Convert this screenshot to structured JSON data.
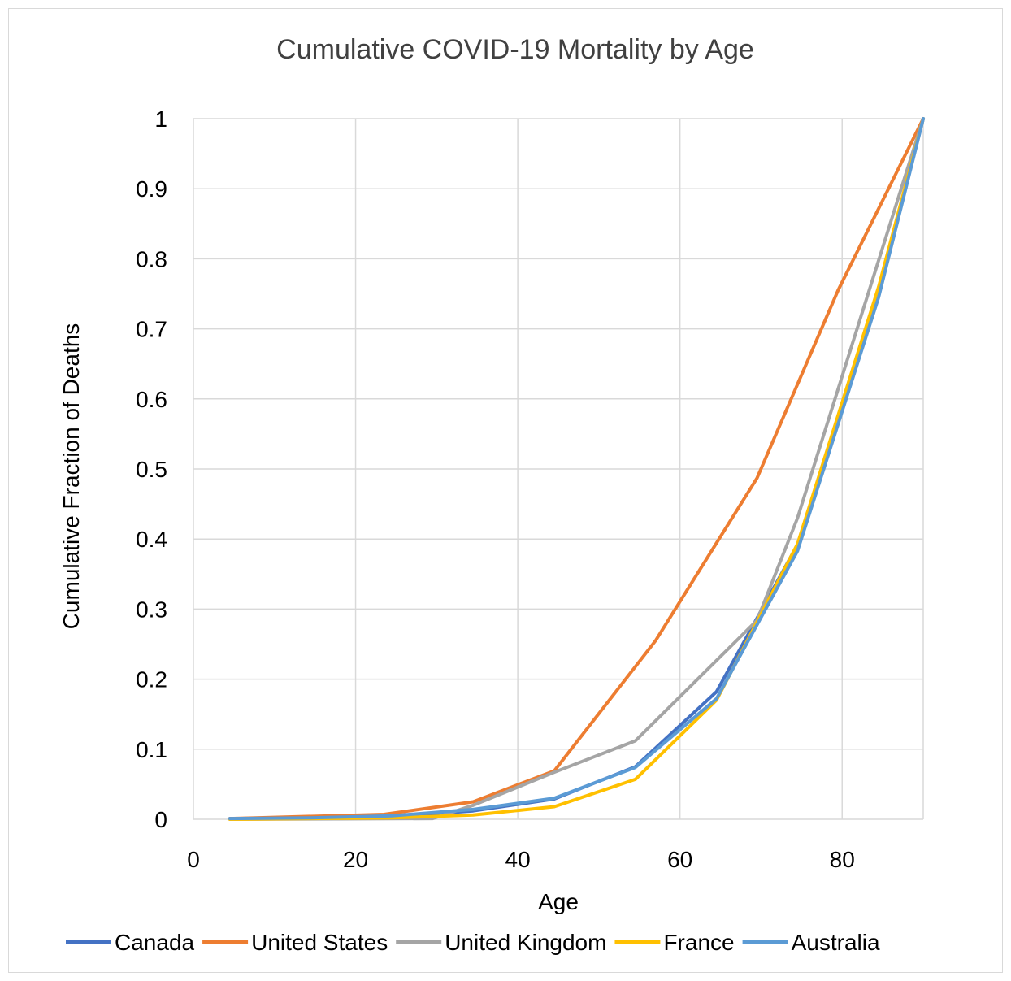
{
  "chart_data": {
    "type": "line",
    "title": "Cumulative COVID-19 Mortality by Age",
    "xlabel": "Age",
    "ylabel": "Cumulative Fraction of Deaths",
    "xlim": [
      0,
      90
    ],
    "ylim": [
      0,
      1
    ],
    "x_ticks": [
      0,
      20,
      40,
      60,
      80
    ],
    "y_ticks": [
      0,
      0.1,
      0.2,
      0.3,
      0.4,
      0.5,
      0.6,
      0.7,
      0.8,
      0.9,
      1
    ],
    "x_tick_labels": [
      "0",
      "20",
      "40",
      "60",
      "80"
    ],
    "y_tick_labels": [
      "0",
      "0.1",
      "0.2",
      "0.3",
      "0.4",
      "0.5",
      "0.6",
      "0.7",
      "0.8",
      "0.9",
      "1"
    ],
    "grid": true,
    "legend_position": "bottom",
    "series": [
      {
        "name": "Canada",
        "color": "#4472c4",
        "points": [
          [
            4.5,
            0.001
          ],
          [
            14.5,
            0.002
          ],
          [
            24.5,
            0.004
          ],
          [
            34.5,
            0.012
          ],
          [
            44.5,
            0.029
          ],
          [
            54.5,
            0.075
          ],
          [
            64.5,
            0.182
          ],
          [
            74.5,
            0.392
          ],
          [
            84.5,
            0.752
          ],
          [
            90,
            1.0
          ]
        ]
      },
      {
        "name": "United States",
        "color": "#ed7d31",
        "points": [
          [
            4.5,
            0.001
          ],
          [
            23.5,
            0.007
          ],
          [
            34.5,
            0.025
          ],
          [
            44.5,
            0.069
          ],
          [
            57,
            0.255
          ],
          [
            69.5,
            0.487
          ],
          [
            79.5,
            0.755
          ],
          [
            90,
            1.0
          ]
        ]
      },
      {
        "name": "United Kingdom",
        "color": "#a5a5a5",
        "points": [
          [
            4.5,
            0.0
          ],
          [
            29.5,
            0.001
          ],
          [
            34.5,
            0.02
          ],
          [
            44.5,
            0.067
          ],
          [
            54.5,
            0.112
          ],
          [
            69.5,
            0.284
          ],
          [
            74.5,
            0.43
          ],
          [
            90,
            1.0
          ]
        ]
      },
      {
        "name": "France",
        "color": "#ffc000",
        "points": [
          [
            4.5,
            0.0
          ],
          [
            14.5,
            0.001
          ],
          [
            24.5,
            0.002
          ],
          [
            34.5,
            0.006
          ],
          [
            44.5,
            0.018
          ],
          [
            54.5,
            0.057
          ],
          [
            64.5,
            0.17
          ],
          [
            74.5,
            0.393
          ],
          [
            84.5,
            0.76
          ],
          [
            90,
            1.0
          ]
        ]
      },
      {
        "name": "Australia",
        "color": "#5b9bd5",
        "points": [
          [
            4.5,
            0.001
          ],
          [
            14.5,
            0.002
          ],
          [
            24.5,
            0.005
          ],
          [
            34.5,
            0.014
          ],
          [
            44.5,
            0.03
          ],
          [
            54.5,
            0.074
          ],
          [
            64.5,
            0.172
          ],
          [
            74.5,
            0.383
          ],
          [
            84.5,
            0.745
          ],
          [
            90,
            1.0
          ]
        ]
      }
    ]
  }
}
